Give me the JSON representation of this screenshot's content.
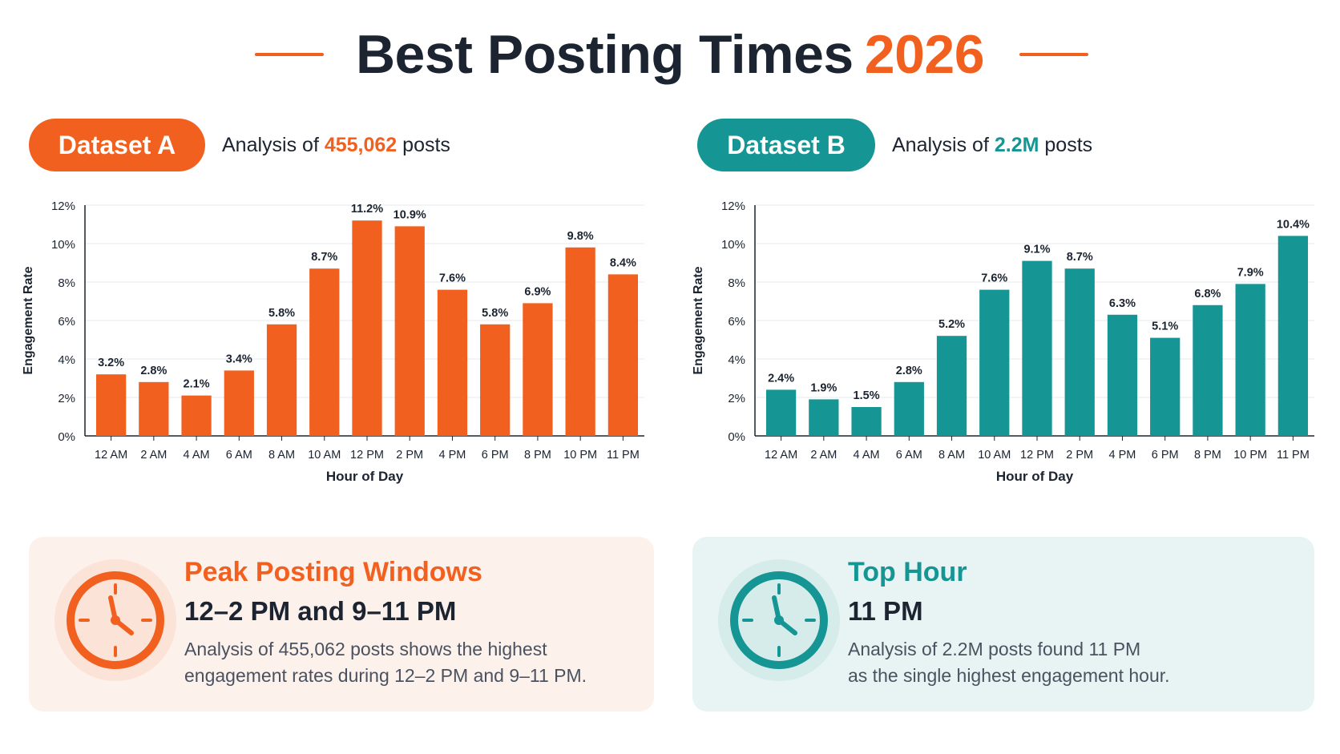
{
  "header": {
    "title": "Best Posting Times",
    "year": "2026",
    "accent": "#f2601f",
    "teal": "#159593"
  },
  "datasets": {
    "a": {
      "label": "Dataset A",
      "subtitle_prefix": "Analysis of",
      "subtitle_value": "455,062",
      "subtitle_suffix": "posts",
      "color": "#f2601f"
    },
    "b": {
      "label": "Dataset B",
      "subtitle_prefix": "Analysis of",
      "subtitle_value": "2.2M",
      "subtitle_suffix": "posts",
      "color": "#159593"
    }
  },
  "chart_data": [
    {
      "type": "bar",
      "categories": [
        "12 AM",
        "2 AM",
        "4 AM",
        "6 AM",
        "8 AM",
        "10 AM",
        "12 PM",
        "2 PM",
        "4 PM",
        "6 PM",
        "8 PM",
        "10 PM",
        "11 PM"
      ],
      "values": [
        3.2,
        2.8,
        2.1,
        3.4,
        5.8,
        8.7,
        11.2,
        10.9,
        7.6,
        5.8,
        6.9,
        9.8,
        8.4
      ],
      "data_labels": [
        "3.2%",
        "2.8%",
        "2.1%",
        "3.4%",
        "5.8%",
        "8.7%",
        "11.2%",
        "10.9%",
        "7.6%",
        "5.8%",
        "6.9%",
        "9.8%",
        "8.4%"
      ],
      "xlabel": "Hour of Day",
      "ylabel": "Engagement Rate",
      "ylim": [
        0,
        12
      ],
      "yticks": [
        "0%",
        "2%",
        "4%",
        "6%",
        "8%",
        "10%",
        "12%"
      ],
      "grid": true,
      "color": "#f2601f"
    },
    {
      "type": "bar",
      "categories": [
        "12 AM",
        "2 AM",
        "4 AM",
        "6 AM",
        "8 AM",
        "10 AM",
        "12 PM",
        "2 PM",
        "4 PM",
        "6 PM",
        "8 PM",
        "10 PM",
        "11 PM"
      ],
      "values": [
        2.4,
        1.9,
        1.5,
        2.8,
        5.2,
        7.6,
        9.1,
        8.7,
        6.3,
        5.1,
        6.8,
        7.9,
        10.4
      ],
      "data_labels": [
        "2.4%",
        "1.9%",
        "1.5%",
        "2.8%",
        "5.2%",
        "7.6%",
        "9.1%",
        "8.7%",
        "6.3%",
        "5.1%",
        "6.8%",
        "7.9%",
        "10.4%"
      ],
      "xlabel": "Hour of Day",
      "ylabel": "Engagement Rate",
      "ylim": [
        0,
        12
      ],
      "yticks": [
        "0%",
        "2%",
        "4%",
        "6%",
        "8%",
        "10%",
        "12%"
      ],
      "grid": true,
      "color": "#159593"
    }
  ],
  "cards": {
    "a": {
      "heading": "Peak Posting Windows",
      "main": "12–2 PM and 9–11 PM",
      "desc_line1": "Analysis of 455,062 posts shows the highest",
      "desc_line2": "engagement rates during 12–2 PM and 9–11 PM.",
      "icon": "clock-icon"
    },
    "b": {
      "heading": "Top Hour",
      "main": "11 PM",
      "desc_line1": "Analysis of 2.2M posts found 11 PM",
      "desc_line2": "as the single highest engagement hour.",
      "icon": "clock-icon"
    }
  }
}
